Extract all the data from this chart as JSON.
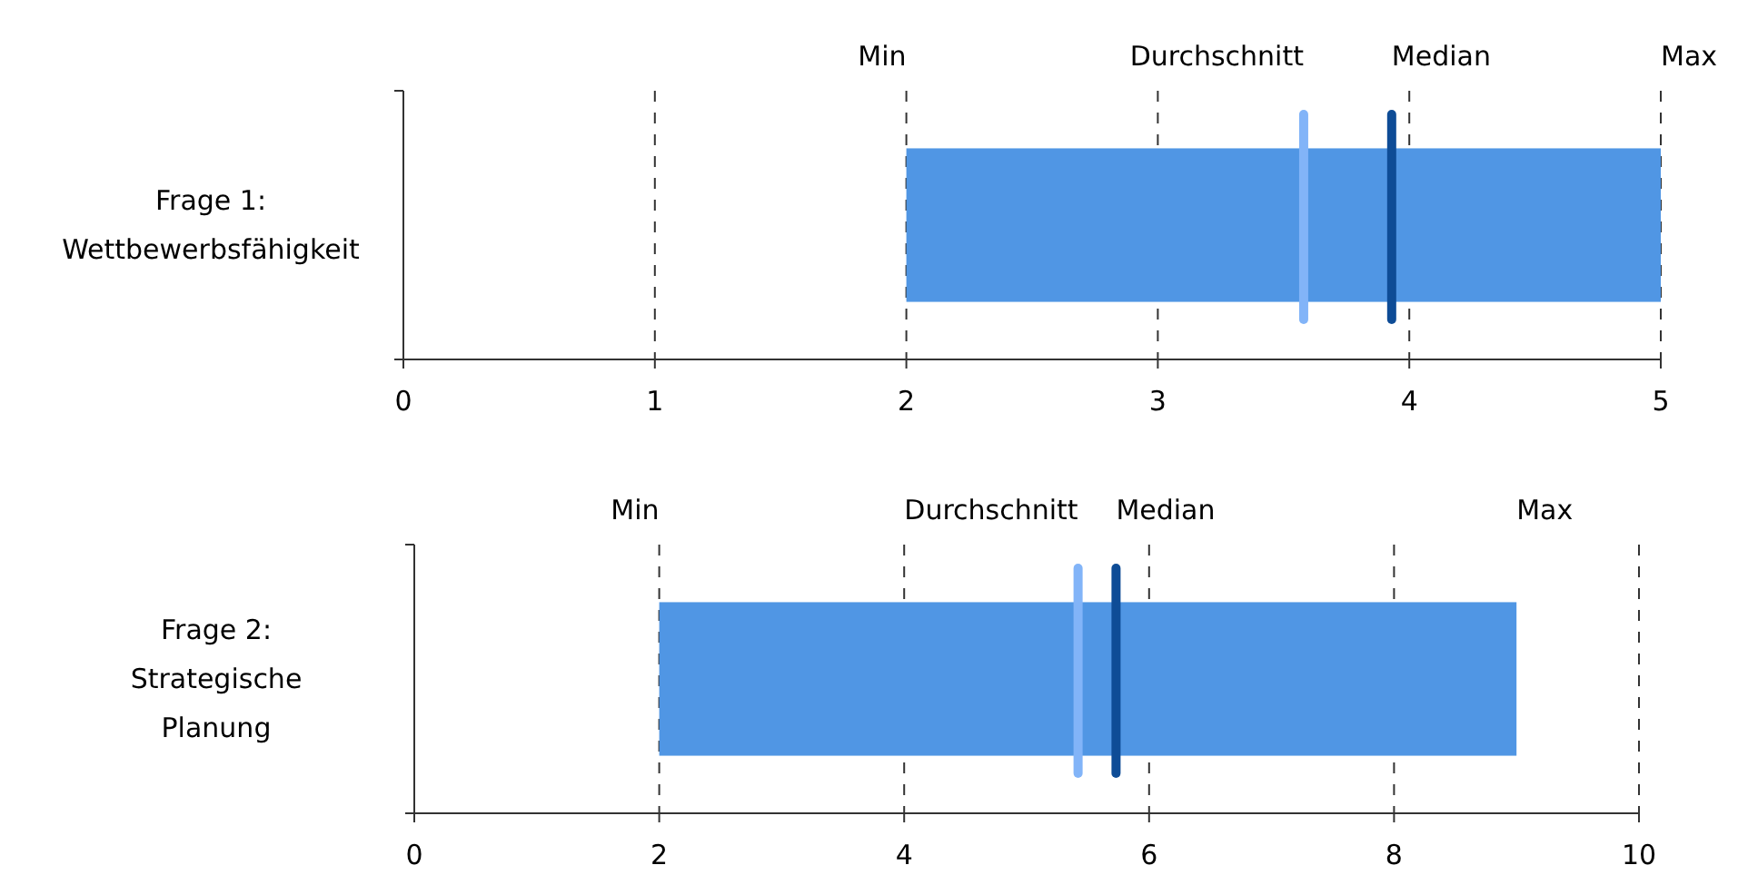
{
  "chart_data": [
    {
      "type": "bar",
      "orientation": "horizontal",
      "categories": [
        "Frage 1:\nWettbewerbsfähigkeit"
      ],
      "base": [
        2
      ],
      "values": [
        3
      ],
      "color": "#5096e4",
      "xlim": [
        0,
        5
      ],
      "xticks": [
        0,
        1,
        2,
        3,
        4,
        5
      ],
      "grid": "x",
      "ref_lines": [
        {
          "axis": "x",
          "value": 3.58,
          "label": "Durchschnitt",
          "color": "#82b4f8"
        },
        {
          "axis": "x",
          "value": 3.93,
          "label": "Median",
          "color": "#0e4c96"
        }
      ],
      "annotations": [
        "Min",
        "Max"
      ]
    },
    {
      "type": "bar",
      "orientation": "horizontal",
      "categories": [
        "Frage 2:\nStrategische\nPlanung"
      ],
      "base": [
        2
      ],
      "values": [
        7
      ],
      "color": "#5096e4",
      "xlim": [
        0,
        10
      ],
      "xticks": [
        0,
        2,
        4,
        6,
        8,
        10
      ],
      "grid": "x",
      "ref_lines": [
        {
          "axis": "x",
          "value": 5.42,
          "label": "Durchschnitt",
          "color": "#82b4f8"
        },
        {
          "axis": "x",
          "value": 5.73,
          "label": "Median",
          "color": "#0e4c96"
        }
      ],
      "annotations": [
        "Min",
        "Max"
      ]
    }
  ]
}
